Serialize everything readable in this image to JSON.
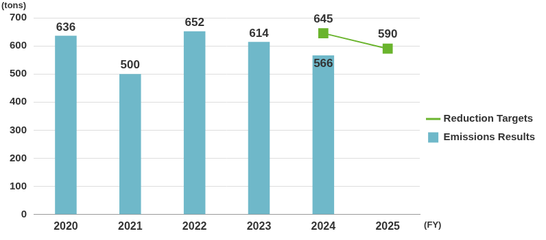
{
  "chart_data": {
    "type": "bar",
    "y_label": "(tons)",
    "x_label": "(FY)",
    "categories": [
      "2020",
      "2021",
      "2022",
      "2023",
      "2024",
      "2025"
    ],
    "series": [
      {
        "name": "Reduction Targets",
        "type": "line",
        "color": "#6ab42d",
        "marker": "square",
        "values": [
          null,
          null,
          null,
          null,
          645,
          590
        ]
      },
      {
        "name": "Emissions Results",
        "type": "bar",
        "color": "#6fb8c9",
        "values": [
          636,
          500,
          652,
          614,
          566,
          null
        ]
      }
    ],
    "ylim": [
      0,
      700
    ],
    "yticks": [
      0,
      100,
      200,
      300,
      400,
      500,
      600,
      700
    ],
    "grid": true,
    "data_labels": true,
    "legend": "right"
  }
}
